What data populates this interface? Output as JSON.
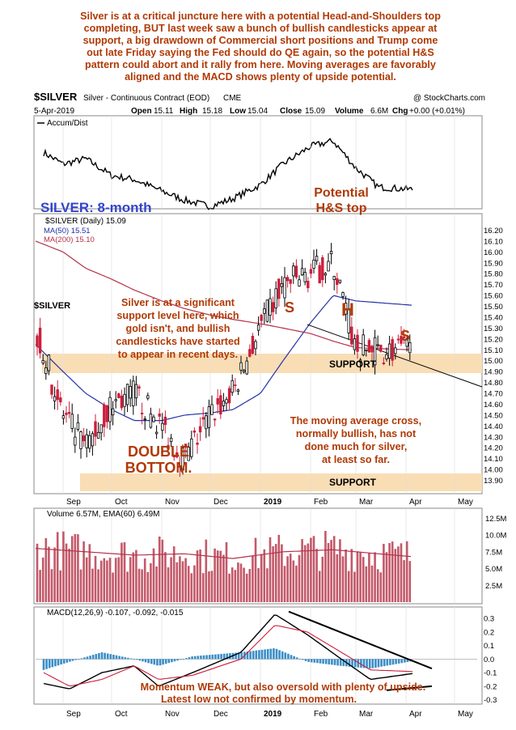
{
  "colors": {
    "comment": "#b03a06",
    "title_blue": "#3344cc",
    "ma50": "#2233aa",
    "ma200": "#b5324a",
    "support_band": "#f9ddb5",
    "price_candle_red": "#cc1f3c",
    "price_candle_black": "#000000",
    "volume_bar": "#b93c4f",
    "macd_hist": "#3a8ec7"
  },
  "header": {
    "commentary": [
      "Silver is at a critical juncture here with a potential Head-and-Shoulders top",
      "completing, BUT last week saw a bunch of bullish candlesticks appear at",
      "support, a big drawdown of Commercial short positions and Trump come",
      "out late Friday saying the Fed should do QE again, so the potential H&S",
      "pattern could abort and it rally from here. Moving averages are favorably",
      "aligned and the MACD shows plenty of upside potential."
    ]
  },
  "chart_header": {
    "symbol": "$SILVER",
    "contract": "Silver - Continuous Contract (EOD)",
    "exchange": "CME",
    "copyright": "@ StockCharts.com",
    "date": "5-Apr-2019",
    "open_label": "Open",
    "open": "15.11",
    "high_label": "High",
    "high": "15.18",
    "low_label": "Low",
    "low": "15.04",
    "close_label": "Close",
    "close": "15.09",
    "volume_label": "Volume",
    "volume": "6.6M",
    "chg_label": "Chg",
    "chg": "+0.00 (+0.01%)"
  },
  "chart_data": [
    {
      "type": "line",
      "panel": "Accum/Dist",
      "legend": "Accum/Dist",
      "x": [
        "2018-08-20",
        "2018-09-01",
        "2018-09-15",
        "2018-10-01",
        "2018-10-15",
        "2018-11-01",
        "2018-11-15",
        "2018-12-01",
        "2018-12-15",
        "2019-01-01",
        "2019-01-15",
        "2019-02-01",
        "2019-02-15",
        "2019-03-01",
        "2019-03-15",
        "2019-04-05"
      ],
      "values": [
        0.7,
        0.55,
        0.62,
        0.4,
        0.35,
        0.2,
        0.08,
        0.0,
        0.1,
        0.28,
        0.55,
        0.78,
        0.85,
        0.5,
        0.25,
        0.22
      ]
    },
    {
      "type": "candlestick",
      "panel": "price",
      "legend": "$SILVER (Daily) 15.09",
      "series": [
        {
          "name": "MA(50) 15.51",
          "values": [
            15.15,
            14.9,
            14.7,
            14.55,
            14.45,
            14.45,
            14.5,
            14.52,
            14.55,
            14.7,
            15.0,
            15.35,
            15.6,
            15.55,
            15.51
          ]
        },
        {
          "name": "MA(200) 15.10",
          "values": [
            16.1,
            16.0,
            15.85,
            15.75,
            15.65,
            15.55,
            15.48,
            15.42,
            15.38,
            15.34,
            15.3,
            15.25,
            15.18,
            15.12,
            15.1
          ]
        }
      ],
      "x": [
        "2018-08-15",
        "2018-09-01",
        "2018-09-15",
        "2018-10-01",
        "2018-10-15",
        "2018-11-01",
        "2018-11-15",
        "2018-12-01",
        "2018-12-15",
        "2019-01-01",
        "2019-01-15",
        "2019-02-01",
        "2019-02-15",
        "2019-03-01",
        "2019-04-05"
      ],
      "close": [
        15.3,
        14.5,
        14.2,
        14.6,
        14.7,
        14.4,
        14.1,
        14.5,
        14.7,
        15.3,
        15.7,
        15.8,
        15.9,
        15.1,
        15.09
      ],
      "ylim": [
        13.8,
        16.3
      ],
      "yticks": [
        "16.20",
        "16.10",
        "16.00",
        "15.90",
        "15.80",
        "15.70",
        "15.60",
        "15.50",
        "15.40",
        "15.30",
        "15.20",
        "15.10",
        "15.00",
        "14.90",
        "14.80",
        "14.70",
        "14.60",
        "14.50",
        "14.40",
        "14.30",
        "14.20",
        "14.10",
        "14.00",
        "13.90"
      ],
      "support_levels": [
        15.0,
        13.95
      ],
      "annotations": {
        "title": "SILVER: 8-month",
        "pattern_title": [
          "Potential",
          "H&S top"
        ],
        "left_shoulder": "S",
        "head": "H",
        "right_shoulder": "S",
        "support_label": "SUPPORT",
        "support_note": [
          "Silver is at a significant",
          "support level here, which",
          "gold isn't, and bullish",
          "candlesticks have started",
          "to appear in recent days."
        ],
        "ma_note": [
          "The moving average cross,",
          "normally bullish, has not",
          "done much for silver,",
          "at least so far."
        ],
        "double_bottom": [
          "DOUBLE",
          "BOTTOM."
        ],
        "side_label": "$SILVER"
      }
    },
    {
      "type": "bar",
      "panel": "volume",
      "legend": "Volume 6.57M, EMA(60) 6.49M",
      "x": [
        "2018-08",
        "2018-09",
        "2018-10",
        "2018-11",
        "2018-12",
        "2019-01",
        "2019-02",
        "2019-03",
        "2019-04"
      ],
      "values": [
        8.0,
        7.5,
        7.0,
        7.2,
        6.5,
        7.5,
        7.8,
        7.2,
        6.57
      ],
      "ylim": [
        0,
        13.5
      ],
      "yticks": [
        "12.5M",
        "10.0M",
        "7.5M",
        "5.0M",
        "2.5M"
      ]
    },
    {
      "type": "line",
      "panel": "MACD",
      "legend": "MACD(12,26,9) -0.107, -0.092, -0.015",
      "series": [
        {
          "name": "MACD",
          "values": [
            -0.18,
            -0.22,
            -0.1,
            -0.05,
            -0.2,
            -0.1,
            0.05,
            0.33,
            0.18,
            0.0,
            -0.15,
            -0.107
          ]
        },
        {
          "name": "Signal",
          "values": [
            -0.1,
            -0.2,
            -0.15,
            -0.05,
            -0.15,
            -0.12,
            0.0,
            0.25,
            0.2,
            0.05,
            -0.08,
            -0.092
          ]
        }
      ],
      "ylim": [
        -0.32,
        0.36
      ],
      "yticks": [
        "0.3",
        "0.2",
        "0.1",
        "0.0",
        "-0.1",
        "-0.2",
        "-0.3"
      ],
      "annotation": [
        "Momentum WEAK, but also oversold with plenty of upside.",
        "Latest low not confirmed by momentum."
      ]
    }
  ],
  "x_axis": {
    "months": [
      "Sep",
      "Oct",
      "Nov",
      "Dec",
      "2019",
      "Feb",
      "Mar",
      "Apr",
      "May"
    ]
  }
}
